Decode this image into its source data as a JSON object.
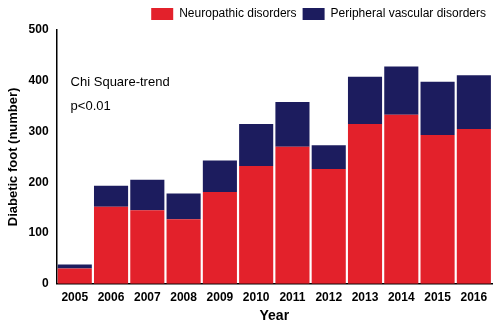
{
  "chart_data": {
    "type": "bar",
    "stacked": true,
    "x_label": "Year",
    "y_label": "Diabetic foot (number)",
    "annotations": [
      "Chi Square-trend",
      "p<0.01"
    ],
    "categories": [
      "2005",
      "2006",
      "2007",
      "2008",
      "2009",
      "2010",
      "2011",
      "2012",
      "2013",
      "2014",
      "2015",
      "2016"
    ],
    "series": [
      {
        "name": "Neuropathic disorders",
        "color": "#e3212b",
        "values": [
          30,
          152,
          145,
          127,
          181,
          232,
          270,
          226,
          315,
          333,
          293,
          305
        ]
      },
      {
        "name": "Peripheral vascular disorders",
        "color": "#1c1c5e",
        "values": [
          8,
          41,
          60,
          51,
          62,
          83,
          88,
          47,
          93,
          95,
          105,
          106
        ]
      }
    ],
    "ylim": [
      0,
      500
    ],
    "yticks": [
      0,
      100,
      200,
      300,
      400,
      500
    ],
    "grid": false,
    "legend": "upper right"
  }
}
